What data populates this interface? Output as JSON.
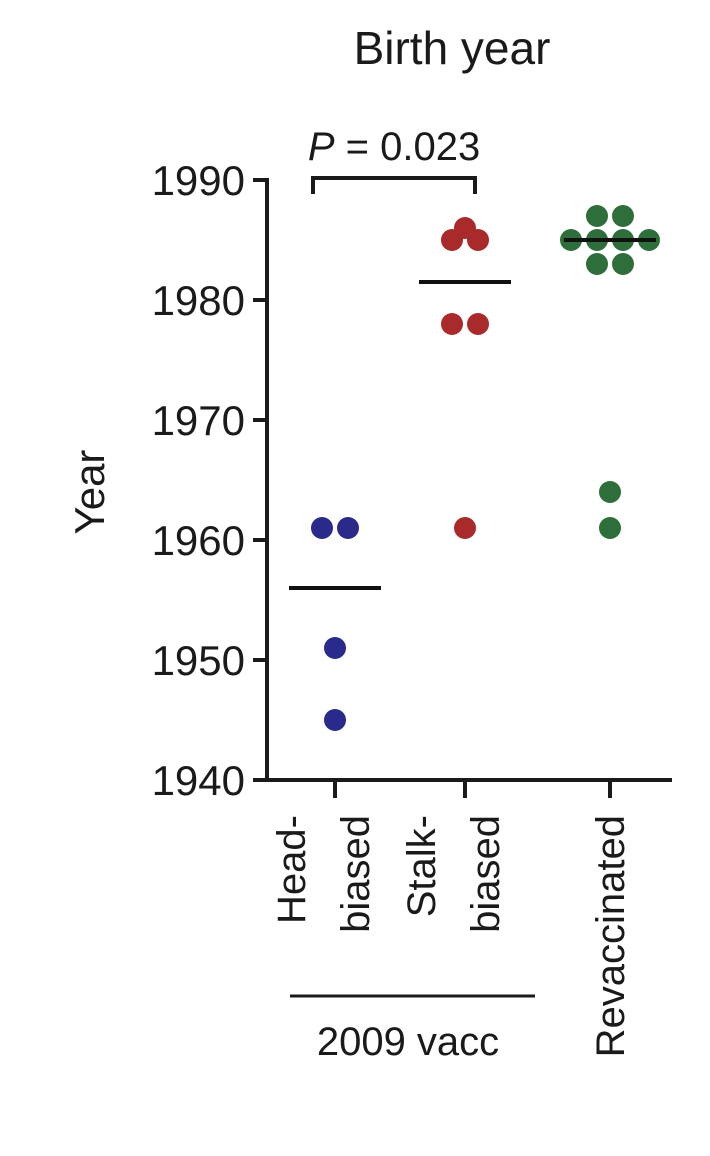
{
  "chart_data": {
    "type": "scatter",
    "title": "Birth year",
    "ylabel": "Year",
    "ylim": [
      1940,
      1990
    ],
    "yticks": [
      "1940",
      "1950",
      "1960",
      "1970",
      "1980",
      "1990"
    ],
    "categories": [
      {
        "lines": [
          "Head-",
          "biased"
        ]
      },
      {
        "lines": [
          "Stalk-",
          "biased"
        ]
      },
      {
        "lines": [
          "Revaccinated"
        ]
      }
    ],
    "group_label": "2009 vacc",
    "annotation": {
      "text": "P = 0.023",
      "p_symbol": "P",
      "p_rest": " = 0.023",
      "from": 0,
      "to": 1
    },
    "series": [
      {
        "color": "#2a2a8c",
        "mean": 1956,
        "points": [
          1961,
          1961,
          1951,
          1945
        ]
      },
      {
        "color": "#a82a2a",
        "mean": 1981.5,
        "points": [
          1986,
          1985,
          1985,
          1978,
          1978,
          1961
        ]
      },
      {
        "color": "#2e6e3a",
        "mean": 1985,
        "points": [
          1987,
          1987,
          1985,
          1985,
          1985,
          1985,
          1983,
          1983,
          1964,
          1961
        ]
      }
    ]
  }
}
